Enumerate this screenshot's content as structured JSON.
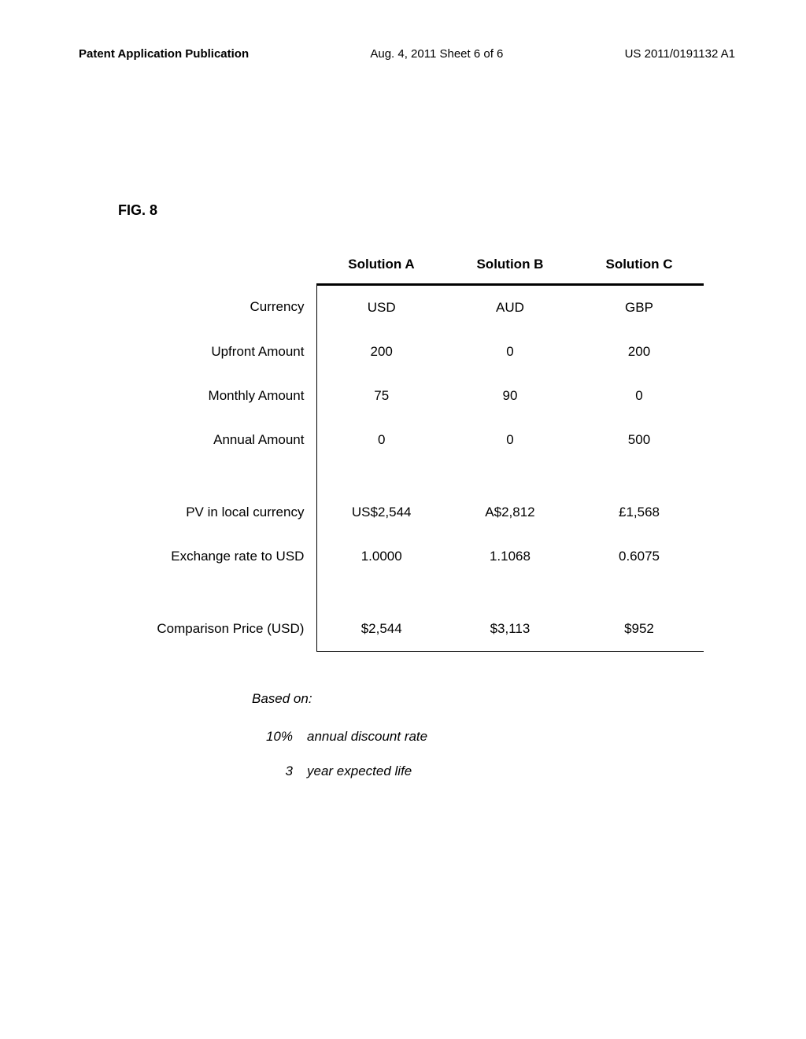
{
  "header": {
    "left": "Patent Application Publication",
    "mid": "Aug. 4, 2011  Sheet 6 of 6",
    "right": "US 2011/0191132 A1"
  },
  "figure_label": "FIG. 8",
  "table": {
    "column_headers": [
      "",
      "Solution A",
      "Solution B",
      "Solution C"
    ],
    "rows": [
      {
        "label": "Currency",
        "a": "USD",
        "b": "AUD",
        "c": "GBP"
      },
      {
        "label": "Upfront Amount",
        "a": "200",
        "b": "0",
        "c": "200"
      },
      {
        "label": "Monthly Amount",
        "a": "75",
        "b": "90",
        "c": "0"
      },
      {
        "label": "Annual Amount",
        "a": "0",
        "b": "0",
        "c": "500"
      }
    ],
    "rows2": [
      {
        "label": "PV in local currency",
        "a": "US$2,544",
        "b": "A$2,812",
        "c": "£1,568"
      },
      {
        "label": "Exchange rate to USD",
        "a": "1.0000",
        "b": "1.1068",
        "c": "0.6075"
      }
    ],
    "rows3": [
      {
        "label": "Comparison Price (USD)",
        "a": "$2,544",
        "b": "$3,113",
        "c": "$952"
      }
    ]
  },
  "basis": {
    "title": "Based on:",
    "items": [
      {
        "value": "10%",
        "desc": "annual discount rate"
      },
      {
        "value": "3",
        "desc": "year expected life"
      }
    ]
  }
}
